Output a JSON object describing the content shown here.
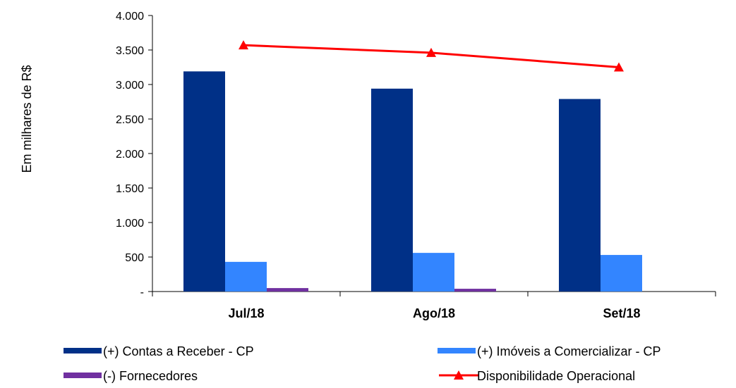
{
  "chart_data": {
    "type": "bar",
    "categories": [
      "Jul/18",
      "Ago/18",
      "Set/18"
    ],
    "ylabel": "Em milhares de R$",
    "ylim": [
      0,
      4000
    ],
    "yticks": [
      0,
      500,
      1000,
      1500,
      2000,
      2500,
      3000,
      3500,
      4000
    ],
    "ytick_labels": [
      "-",
      "500",
      "1.000",
      "1.500",
      "2.000",
      "2.500",
      "3.000",
      "3.500",
      "4.000"
    ],
    "grid": false,
    "legend_position": "bottom",
    "series": [
      {
        "name": "(+) Contas a Receber - CP",
        "kind": "bar",
        "color": "#003087",
        "values": [
          3190,
          2940,
          2790
        ]
      },
      {
        "name": "(+) Imóveis a Comercializar - CP",
        "kind": "bar",
        "color": "#3385FF",
        "values": [
          430,
          560,
          530
        ]
      },
      {
        "name": "(-) Fornecedores",
        "kind": "bar",
        "color": "#7030A0",
        "values": [
          50,
          40,
          0
        ]
      },
      {
        "name": "Disponibilidade Operacional",
        "kind": "line",
        "marker": "triangle",
        "color": "#FF0000",
        "values": [
          3570,
          3460,
          3250
        ]
      }
    ]
  }
}
